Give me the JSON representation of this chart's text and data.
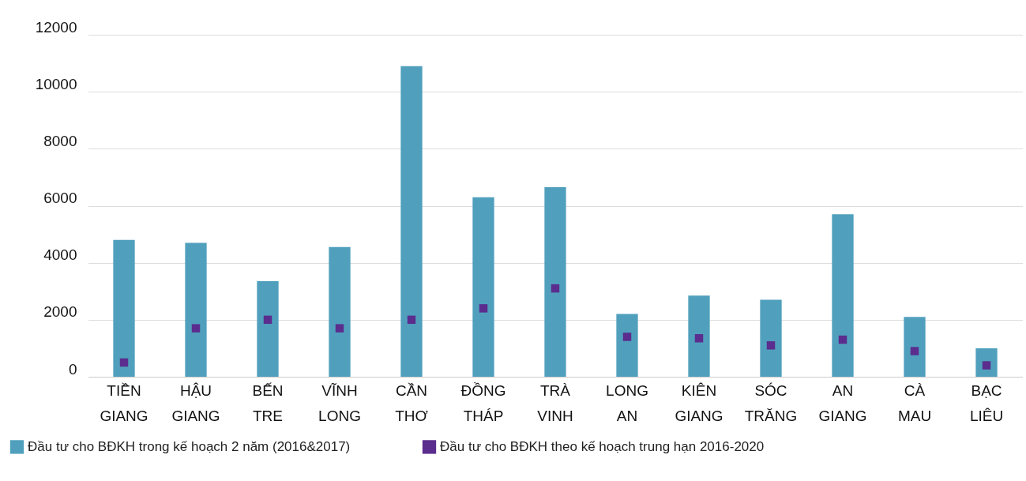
{
  "chart_data": {
    "type": "bar",
    "categories": [
      "TIỀN GIANG",
      "HẬU GIANG",
      "BẾN TRE",
      "VĨNH LONG",
      "CẦN THƠ",
      "ĐỒNG THÁP",
      "TRÀ VINH",
      "LONG AN",
      "KIÊN GIANG",
      "SÓC TRĂNG",
      "AN GIANG",
      "CÀ MAU",
      "BẠC LIÊU"
    ],
    "series": [
      {
        "name": "Đầu tư cho BĐKH trong kế hoạch 2 năm (2016&2017)",
        "color": "#50a0bd",
        "values": [
          4800,
          4700,
          3350,
          4550,
          10900,
          6300,
          6650,
          2200,
          2850,
          2700,
          5700,
          2100,
          1000
        ]
      },
      {
        "name": "Đầu tư cho BĐKH theo kế hoạch trung hạn 2016-2020",
        "type": "scatter",
        "marker": "square",
        "color": "#5b2d8e",
        "values": [
          500,
          1700,
          2000,
          1700,
          2000,
          2400,
          3100,
          1400,
          1350,
          1100,
          1300,
          900,
          400
        ]
      }
    ],
    "ylim": [
      0,
      12000
    ],
    "yticks": [
      0,
      2000,
      4000,
      6000,
      8000,
      10000,
      12000
    ],
    "grid": "y",
    "legend": "bottom"
  }
}
